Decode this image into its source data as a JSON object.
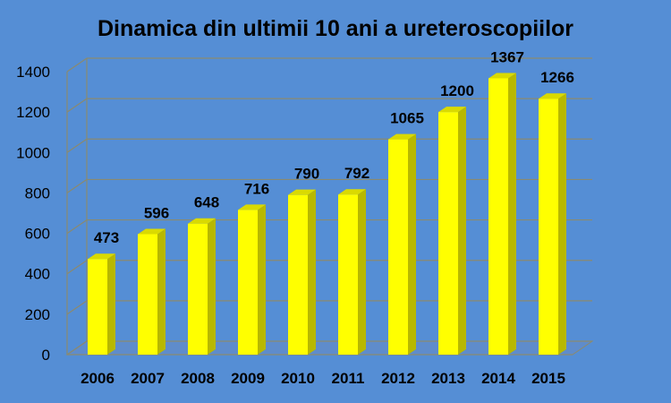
{
  "chart_data": {
    "type": "bar",
    "title": "Dinamica din ultimii 10 ani a ureteroscopiilor",
    "categories": [
      "2006",
      "2007",
      "2008",
      "2009",
      "2010",
      "2011",
      "2012",
      "2013",
      "2014",
      "2015"
    ],
    "values": [
      473,
      596,
      648,
      716,
      790,
      792,
      1065,
      1200,
      1367,
      1266
    ],
    "data_labels": [
      "473",
      "596",
      "648",
      "716",
      "790",
      "792",
      "1065",
      "1200",
      "1367",
      "1266"
    ],
    "ylim": [
      0,
      1400
    ],
    "yticks": [
      "0",
      "200",
      "400",
      "600",
      "800",
      "1000",
      "1200",
      "1400"
    ],
    "ytick_values": [
      0,
      200,
      400,
      600,
      800,
      1000,
      1200,
      1400
    ],
    "grid": true,
    "legend": "none",
    "style": "3d-column"
  },
  "colors": {
    "background": "#558ED5",
    "bar_front": "#FFFF00",
    "bar_side": "#B8B800",
    "bar_top": "#DADA00",
    "gridline": "#8A8A70",
    "wall": "#558ED5",
    "floor": "#5F8CCB",
    "text": "#000000"
  }
}
